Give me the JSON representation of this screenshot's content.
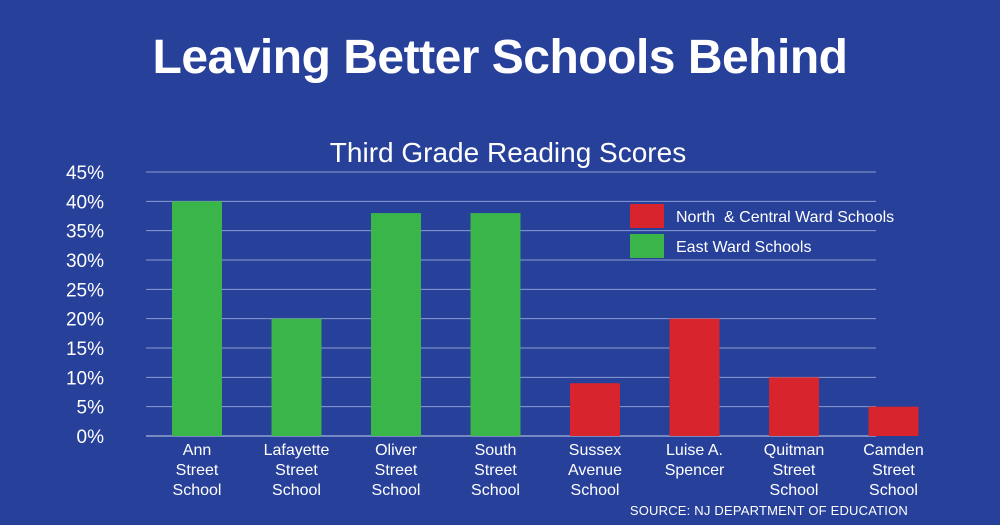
{
  "header": {
    "title": "Leaving Better Schools Behind"
  },
  "source": "SOURCE: NJ DEPARTMENT OF EDUCATION",
  "colors": {
    "background": "#27409a",
    "north_central": "#d7242d",
    "east": "#3ab54a",
    "grid": "#8a9bd0"
  },
  "chart_data": {
    "type": "bar",
    "title": "Third Grade Reading Scores",
    "categories": [
      [
        "Ann",
        "Street",
        "School"
      ],
      [
        "Lafayette",
        "Street",
        "School"
      ],
      [
        "Oliver",
        "Street",
        "School"
      ],
      [
        "South",
        "Street",
        "School"
      ],
      [
        "Sussex",
        "Avenue",
        "School"
      ],
      [
        "Luise A.",
        "Spencer"
      ],
      [
        "Quitman",
        "Street",
        "School"
      ],
      [
        "Camden",
        "Street",
        "School"
      ]
    ],
    "values": [
      40,
      20,
      38,
      38,
      9,
      20,
      10,
      5
    ],
    "groups": [
      "east",
      "east",
      "east",
      "east",
      "north_central",
      "north_central",
      "north_central",
      "north_central"
    ],
    "ylim": [
      0,
      45
    ],
    "ytick_step": 5,
    "ytick_suffix": "%",
    "grid": true,
    "legend": {
      "placement": "top-right",
      "entries": [
        {
          "key": "north_central",
          "label": "North  & Central Ward Schools"
        },
        {
          "key": "east",
          "label": "East Ward Schools"
        }
      ]
    }
  }
}
